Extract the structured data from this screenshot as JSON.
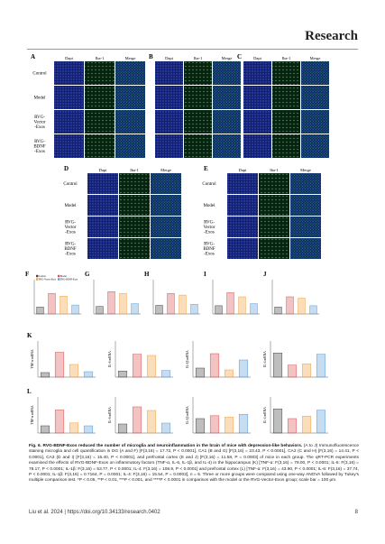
{
  "header": {
    "journal": "Research"
  },
  "figure": {
    "micrographs": [
      {
        "label": "A",
        "columns": [
          "Dapi",
          "Iba-1",
          "Merge"
        ]
      },
      {
        "label": "B",
        "columns": [
          "Dapi",
          "Iba-1",
          "Merge"
        ]
      },
      {
        "label": "C",
        "columns": [
          "Dapi",
          "Iba-1",
          "Merge"
        ]
      },
      {
        "label": "D",
        "columns": [
          "Dapi",
          "Iba-1",
          "Merge"
        ]
      },
      {
        "label": "E",
        "columns": [
          "Dapi",
          "Iba-1",
          "Merge"
        ]
      }
    ],
    "row_labels": [
      [
        "Control"
      ],
      [
        "Model"
      ],
      [
        "RVG-",
        "Vector",
        "-Exos"
      ],
      [
        "RVG-",
        "BDNF",
        "-Exos"
      ]
    ],
    "groups": [
      {
        "name": "Control",
        "color": "#444444"
      },
      {
        "name": "Model",
        "color": "#d9534f"
      },
      {
        "name": "RVG-Vector-Exos",
        "color": "#f0a040"
      },
      {
        "name": "RVG-BDNF-Exos",
        "color": "#5b9bd5"
      }
    ],
    "plots": [
      {
        "label": "F",
        "values": [
          2.0,
          6.0,
          5.2,
          2.6
        ],
        "ylim": [
          0,
          10
        ]
      },
      {
        "label": "G",
        "values": [
          2.2,
          6.5,
          6.0,
          3.0
        ],
        "ylim": [
          0,
          10
        ]
      },
      {
        "label": "H",
        "values": [
          2.5,
          6.0,
          5.5,
          2.8
        ],
        "ylim": [
          0,
          10
        ]
      },
      {
        "label": "I",
        "values": [
          2.4,
          6.2,
          5.0,
          3.0
        ],
        "ylim": [
          0,
          10
        ]
      },
      {
        "label": "J",
        "values": [
          2.0,
          5.0,
          4.6,
          2.4
        ],
        "ylim": [
          0,
          10
        ]
      },
      {
        "label": "K",
        "ylabel": "TNF-α mRNA",
        "values": [
          1.0,
          5.5,
          2.8,
          1.2
        ],
        "ylim": [
          0,
          8
        ]
      },
      {
        "ylabel": "IL-6 mRNA",
        "values": [
          1.0,
          3.8,
          3.6,
          1.1
        ],
        "ylim": [
          0,
          6
        ]
      },
      {
        "ylabel": "IL-1β mRNA",
        "values": [
          1.0,
          2.6,
          0.8,
          1.9
        ],
        "ylim": [
          0,
          4
        ]
      },
      {
        "ylabel": "IL-4 mRNA",
        "values": [
          1.0,
          0.5,
          0.55,
          0.95
        ],
        "ylim": [
          0,
          1.5
        ]
      },
      {
        "label": "L",
        "ylabel": "TNF-α mRNA",
        "values": [
          1.0,
          3.2,
          1.4,
          1.0
        ],
        "ylim": [
          0,
          5
        ]
      },
      {
        "ylabel": "IL-6 mRNA",
        "values": [
          1.0,
          2.9,
          2.5,
          1.1
        ],
        "ylim": [
          0,
          4
        ]
      },
      {
        "ylabel": "IL-1β mRNA",
        "values": [
          1.0,
          1.2,
          1.1,
          1.3
        ],
        "ylim": [
          0,
          2.5
        ]
      },
      {
        "ylabel": "IL-4 mRNA",
        "values": [
          1.0,
          0.6,
          0.7,
          0.95
        ],
        "ylim": [
          0,
          1.5
        ]
      }
    ]
  },
  "caption": {
    "lead": "Fig. 6. RVG-BDNF-Exos reduced the number of microglia and neuroinflammation in the brain of mice with depression-like behaviors.",
    "text": "(A to J) Immunofluorescence staining microglia and cell quantification in DG (A and F) [F(3,16) = 17.72, P < 0.0001], CA1 (B and G) [F(3,16) = 23.43, P < 0.0001], CA2 (C and H) [F(3,16) = 14.41, P < 0.0001], CA3 (D and I) [F(3,16) = 15.40, P < 0.0001], and prefrontal cortex (E and J) [F(3,16) = 11.58, P = 0.0003] of mice in each group. The qRT-PCR experiments examined the effects of RVG-BDNF-Exos on inflammatory factors (TNF-α, IL-6, IL-1β, and IL-4) in the hippocampus (K) [TNF-α: F(3,16) = 78.00, P < 0.0001; IL-6: F(3,16) = 78.17, P < 0.0001; IL-1β: F(3,16) = 53.77, P < 0.0001; IL-4: F(3,16) = 108.9, P < 0.0001] and prefrontal cortex (L) [TNF-α: F(3,16) = 43.90, P < 0.0001; IL-6: F(3,16) = 37.74, P < 0.0001; IL-1β: F(3,16) = 0.7164, P = 0.0001; IL-4: F(3,16) = 15.54, P = 0.0003], n = 5. Three or more groups were compared using one-way ANOVA followed by Tukey's multiple comparison test. *P < 0.05, **P < 0.01, ***P < 0.001, and ****P < 0.0001 in comparison with the model or the RVG-Vector-Exos group; scale bar = 100 μm."
  },
  "footer": {
    "citation": "Liu et al. 2024 | https://doi.org/10.34133/research.0402",
    "page": "8"
  }
}
